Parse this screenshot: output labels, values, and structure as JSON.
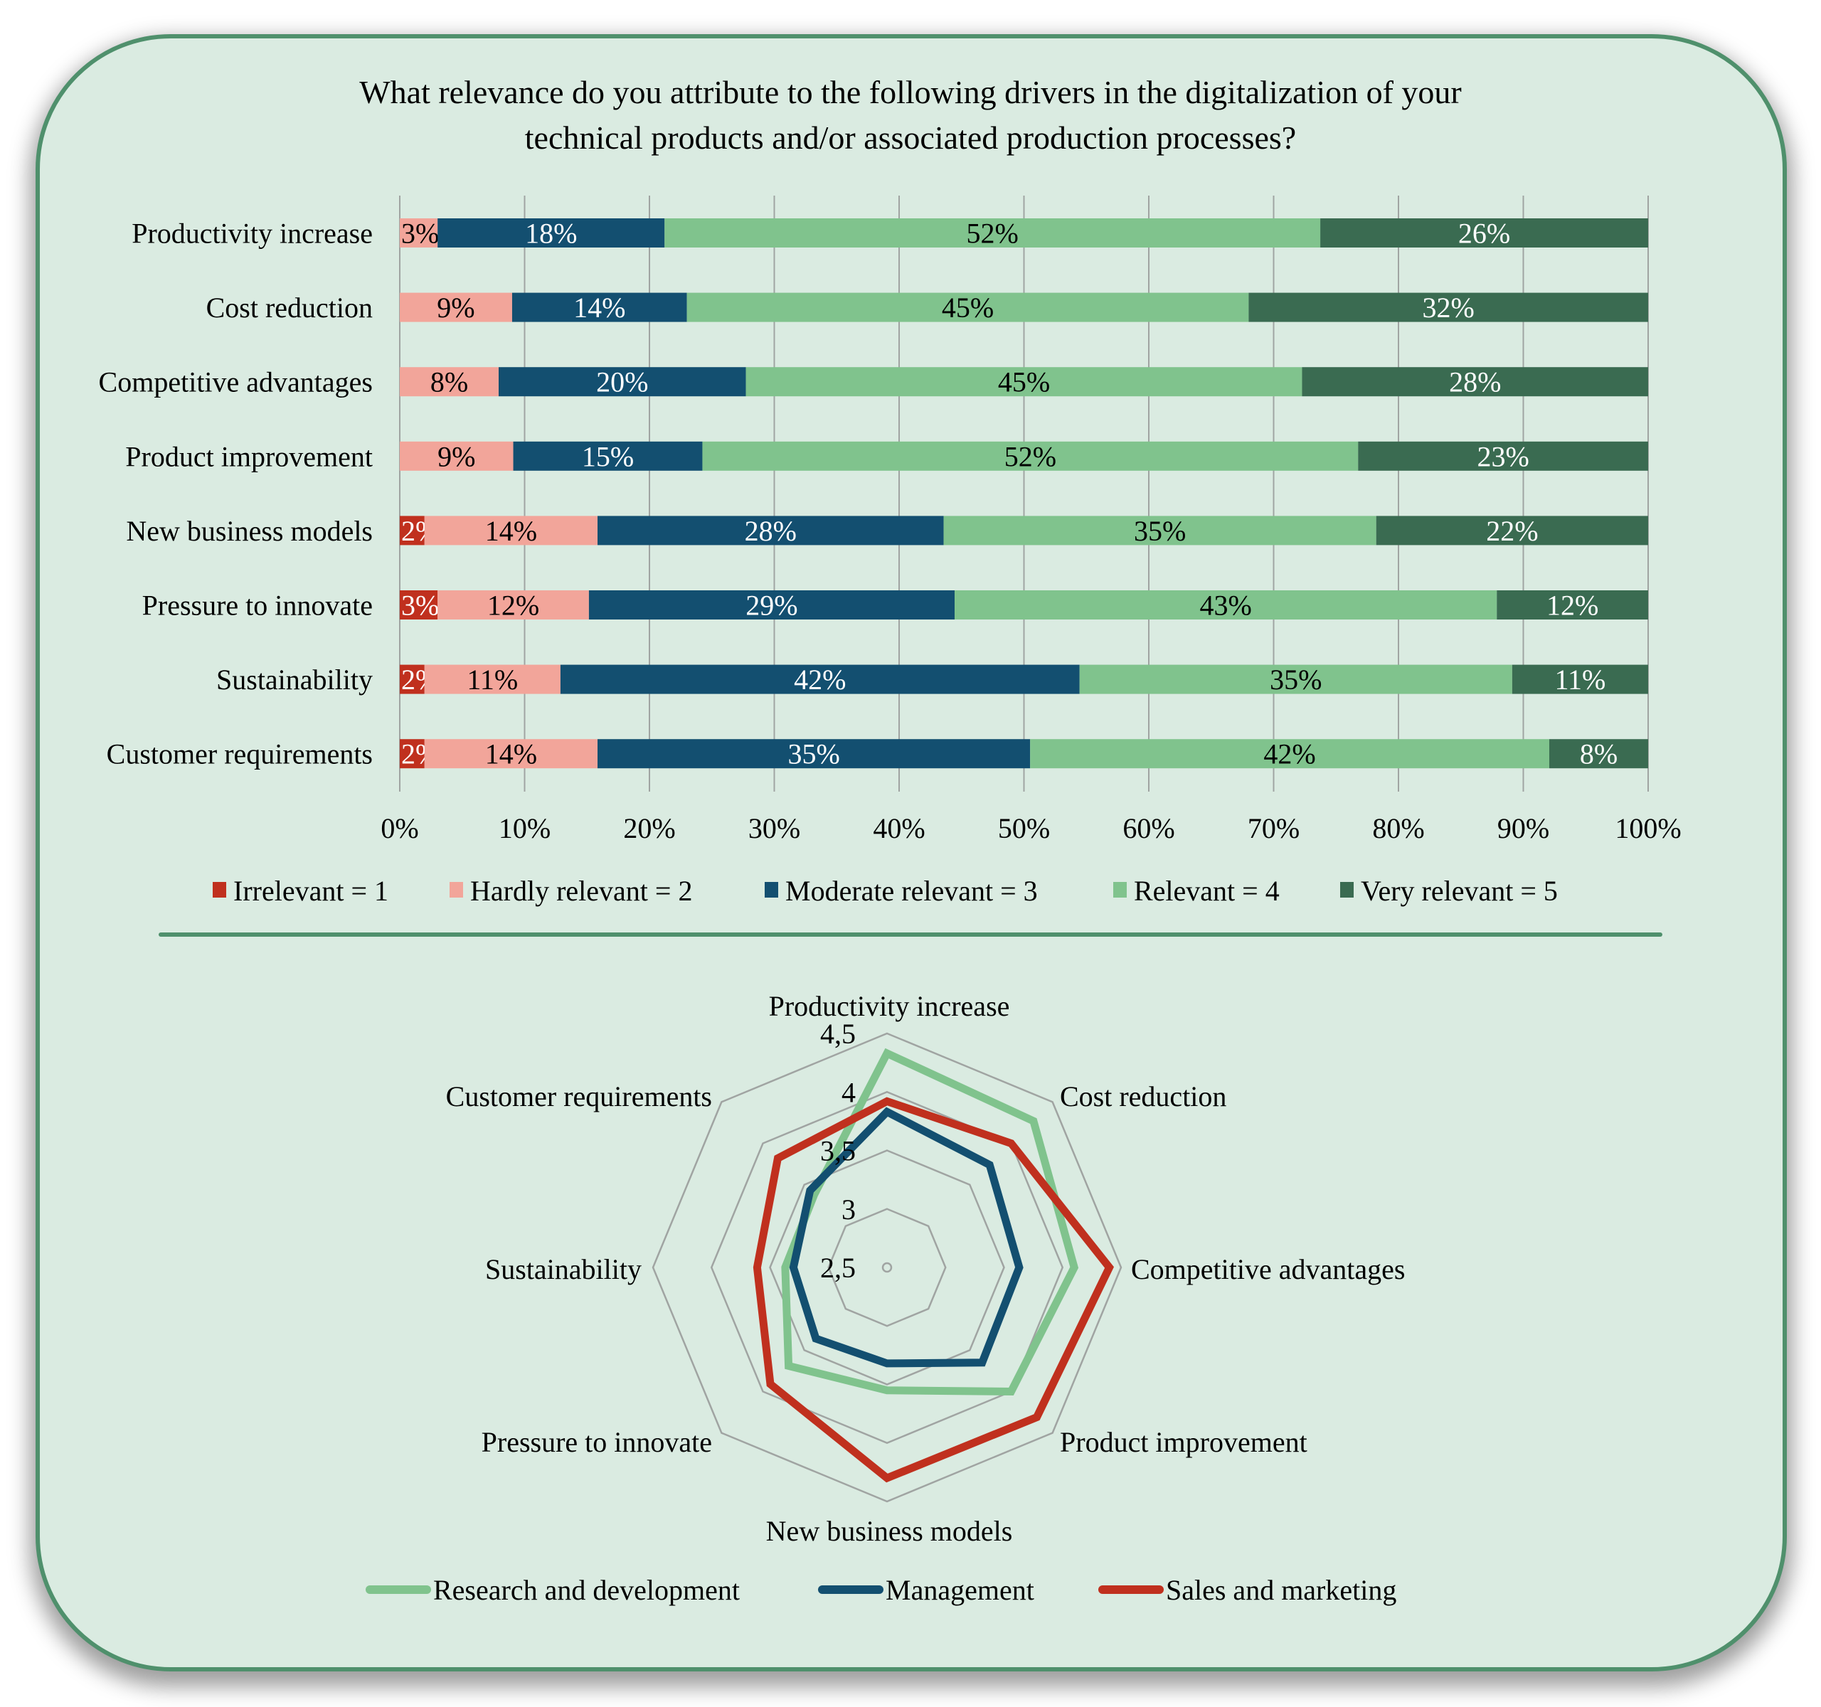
{
  "title_lines": [
    "What relevance do you attribute to the following drivers in the digitalization of your",
    "technical products and/or associated production processes?"
  ],
  "colors": {
    "frame_border": "#4f906c",
    "frame_fill": "#daebe1",
    "gridline": "#a0a4a2",
    "irrelevant": "#c0301e",
    "hardly_relevant": "#f2a59a",
    "moderate_relevant": "#134f70",
    "relevant": "#80c38d",
    "very_relevant": "#3a6b51",
    "rd": "#80c38d",
    "management": "#134f70",
    "sales": "#c0301e"
  },
  "chart_data": [
    {
      "type": "bar",
      "orientation": "horizontal",
      "stacked": "100%",
      "categories": [
        "Productivity increase",
        "Cost reduction",
        "Competitive advantages",
        "Product improvement",
        "New business models",
        "Pressure to innovate",
        "Sustainability",
        "Customer requirements"
      ],
      "series": [
        {
          "name": "Irrelevant = 1",
          "values": [
            0,
            0,
            0,
            0,
            2,
            3,
            2,
            2
          ],
          "label_color": "#ffffff"
        },
        {
          "name": "Hardly relevant = 2",
          "values": [
            3,
            9,
            8,
            9,
            14,
            12,
            11,
            14
          ],
          "label_color": "#000000"
        },
        {
          "name": "Moderate relevant = 3",
          "values": [
            18,
            14,
            20,
            15,
            28,
            29,
            42,
            35
          ],
          "label_color": "#ffffff"
        },
        {
          "name": "Relevant = 4",
          "values": [
            52,
            45,
            45,
            52,
            35,
            43,
            35,
            42
          ],
          "label_color": "#000000"
        },
        {
          "name": "Very relevant = 5",
          "values": [
            26,
            32,
            28,
            23,
            22,
            12,
            11,
            8
          ],
          "label_color": "#ffffff"
        }
      ],
      "xticks": [
        "0%",
        "10%",
        "20%",
        "30%",
        "40%",
        "50%",
        "60%",
        "70%",
        "80%",
        "90%",
        "100%"
      ],
      "xlim": [
        0,
        100
      ],
      "grid": "vertical",
      "legend": "bottom",
      "value_suffix": "%"
    },
    {
      "type": "radar",
      "categories": [
        "Productivity increase",
        "Cost reduction",
        "Competitive advantages",
        "Product improvement",
        "New business models",
        "Pressure to innovate",
        "Sustainability",
        "Customer requirements"
      ],
      "series": [
        {
          "name": "Research and development",
          "values": [
            4.33,
            4.27,
            4.1,
            4.0,
            3.55,
            3.69,
            3.37,
            3.38
          ]
        },
        {
          "name": "Management",
          "values": [
            3.83,
            3.74,
            3.63,
            3.65,
            3.32,
            3.36,
            3.3,
            3.43
          ]
        },
        {
          "name": "Sales and marketing",
          "values": [
            3.92,
            4.0,
            4.4,
            4.31,
            4.3,
            3.91,
            3.61,
            3.82
          ]
        }
      ],
      "rlim": [
        2.5,
        4.5
      ],
      "rticks": [
        "2,5",
        "3",
        "3,5",
        "4",
        "4,5"
      ],
      "rtick_values": [
        2.5,
        3,
        3.5,
        4,
        4.5
      ],
      "legend": "bottom"
    }
  ]
}
